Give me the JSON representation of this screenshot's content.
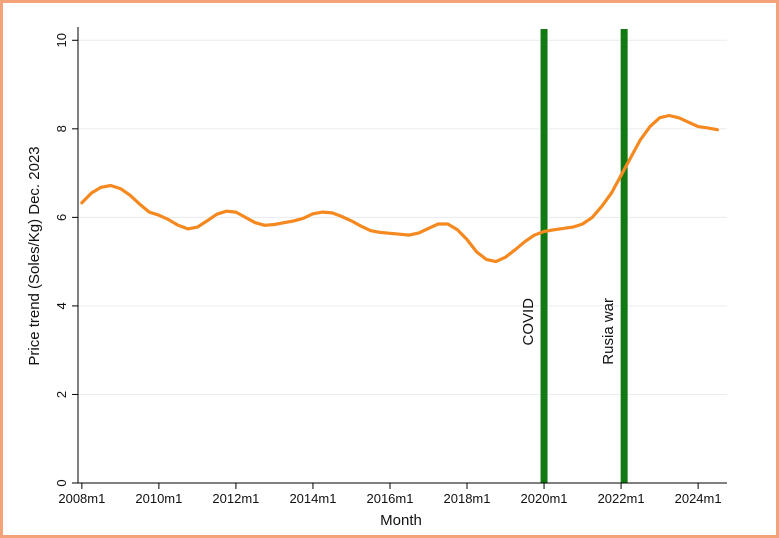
{
  "chart_data": {
    "type": "line",
    "title": "",
    "xlabel": "Month",
    "ylabel": "Price trend (Soles/Kg) Dec. 2023",
    "ylim": [
      0,
      10.3
    ],
    "xlim": [
      2007.9,
      2024.75
    ],
    "y_ticks": [
      0,
      2,
      4,
      6,
      8,
      10
    ],
    "x_ticks": [
      {
        "value": 2008,
        "label": "2008m1"
      },
      {
        "value": 2010,
        "label": "2010m1"
      },
      {
        "value": 2012,
        "label": "2012m1"
      },
      {
        "value": 2014,
        "label": "2014m1"
      },
      {
        "value": 2016,
        "label": "2016m1"
      },
      {
        "value": 2018,
        "label": "2018m1"
      },
      {
        "value": 2020,
        "label": "2020m1"
      },
      {
        "value": 2022,
        "label": "2022m1"
      },
      {
        "value": 2024,
        "label": "2024m1"
      }
    ],
    "grid": "horizontal",
    "series": [
      {
        "color": "#f5891f",
        "x": [
          2008.0,
          2008.25,
          2008.5,
          2008.75,
          2009.0,
          2009.25,
          2009.5,
          2009.75,
          2010.0,
          2010.25,
          2010.5,
          2010.75,
          2011.0,
          2011.25,
          2011.5,
          2011.75,
          2012.0,
          2012.25,
          2012.5,
          2012.75,
          2013.0,
          2013.25,
          2013.5,
          2013.75,
          2014.0,
          2014.25,
          2014.5,
          2014.75,
          2015.0,
          2015.25,
          2015.5,
          2015.75,
          2016.0,
          2016.25,
          2016.5,
          2016.75,
          2017.0,
          2017.25,
          2017.5,
          2017.75,
          2018.0,
          2018.25,
          2018.5,
          2018.75,
          2019.0,
          2019.25,
          2019.5,
          2019.75,
          2020.0,
          2020.25,
          2020.5,
          2020.75,
          2021.0,
          2021.25,
          2021.5,
          2021.75,
          2022.0,
          2022.25,
          2022.5,
          2022.75,
          2023.0,
          2023.25,
          2023.5,
          2023.75,
          2024.0,
          2024.25,
          2024.5
        ],
        "y": [
          6.33,
          6.55,
          6.68,
          6.72,
          6.65,
          6.5,
          6.3,
          6.12,
          6.05,
          5.95,
          5.82,
          5.74,
          5.78,
          5.92,
          6.07,
          6.14,
          6.12,
          6.0,
          5.88,
          5.82,
          5.84,
          5.88,
          5.92,
          5.98,
          6.08,
          6.12,
          6.1,
          6.02,
          5.92,
          5.8,
          5.7,
          5.66,
          5.64,
          5.62,
          5.6,
          5.65,
          5.75,
          5.85,
          5.85,
          5.72,
          5.5,
          5.22,
          5.05,
          5.0,
          5.1,
          5.27,
          5.45,
          5.6,
          5.68,
          5.72,
          5.75,
          5.78,
          5.85,
          6.0,
          6.25,
          6.55,
          6.95,
          7.35,
          7.75,
          8.05,
          8.25,
          8.3,
          8.25,
          8.15,
          8.05,
          8.02,
          7.98
        ]
      }
    ],
    "events": [
      {
        "label": "COVID",
        "x": 2020.0,
        "color": "#137a13"
      },
      {
        "label": "Rusia war",
        "x": 2022.08,
        "color": "#137a13"
      }
    ]
  }
}
